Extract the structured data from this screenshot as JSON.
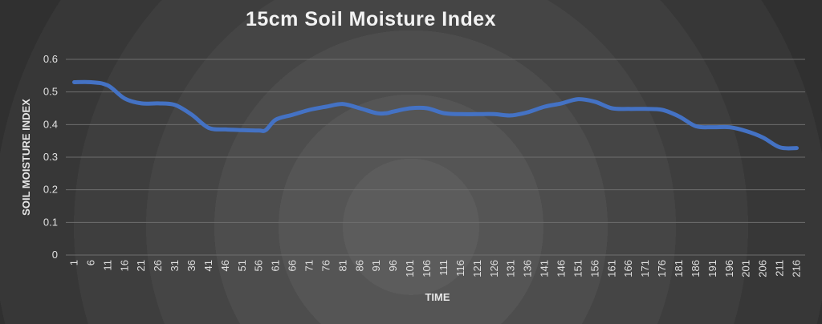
{
  "chart_data": {
    "type": "line",
    "title": "15cm Soil Moisture Index",
    "xlabel": "TIME",
    "ylabel": "SOIL MOISTURE INDEX",
    "ylim": [
      0,
      0.6
    ],
    "yticks": [
      "0",
      "0.1",
      "0.2",
      "0.3",
      "0.4",
      "0.5",
      "0.6"
    ],
    "xticks": [
      "1",
      "6",
      "11",
      "16",
      "21",
      "26",
      "31",
      "36",
      "41",
      "46",
      "51",
      "56",
      "61",
      "66",
      "71",
      "76",
      "81",
      "86",
      "91",
      "96",
      "101",
      "106",
      "111",
      "116",
      "121",
      "126",
      "131",
      "136",
      "141",
      "146",
      "151",
      "156",
      "161",
      "166",
      "171",
      "176",
      "181",
      "186",
      "191",
      "196",
      "201",
      "206",
      "211",
      "216"
    ],
    "grid": "horizontal",
    "legend": "none",
    "colors": {
      "series": "#4472c4",
      "text": "#e0e0e0",
      "grid": "#6e6e6e"
    },
    "series": [
      {
        "x": [
          1,
          6,
          11,
          16,
          21,
          26,
          31,
          36,
          41,
          46,
          51,
          56,
          58,
          61,
          66,
          71,
          76,
          81,
          86,
          91,
          94,
          96,
          101,
          106,
          111,
          116,
          121,
          126,
          131,
          136,
          141,
          146,
          151,
          156,
          161,
          166,
          171,
          176,
          181,
          186,
          191,
          196,
          201,
          206,
          211,
          216
        ],
        "values": [
          0.53,
          0.53,
          0.52,
          0.48,
          0.465,
          0.465,
          0.46,
          0.43,
          0.39,
          0.385,
          0.383,
          0.382,
          0.383,
          0.415,
          0.43,
          0.445,
          0.455,
          0.463,
          0.45,
          0.435,
          0.435,
          0.44,
          0.45,
          0.45,
          0.435,
          0.432,
          0.432,
          0.432,
          0.428,
          0.438,
          0.455,
          0.465,
          0.478,
          0.47,
          0.45,
          0.448,
          0.448,
          0.445,
          0.425,
          0.395,
          0.392,
          0.392,
          0.38,
          0.36,
          0.33,
          0.328
        ]
      }
    ]
  }
}
